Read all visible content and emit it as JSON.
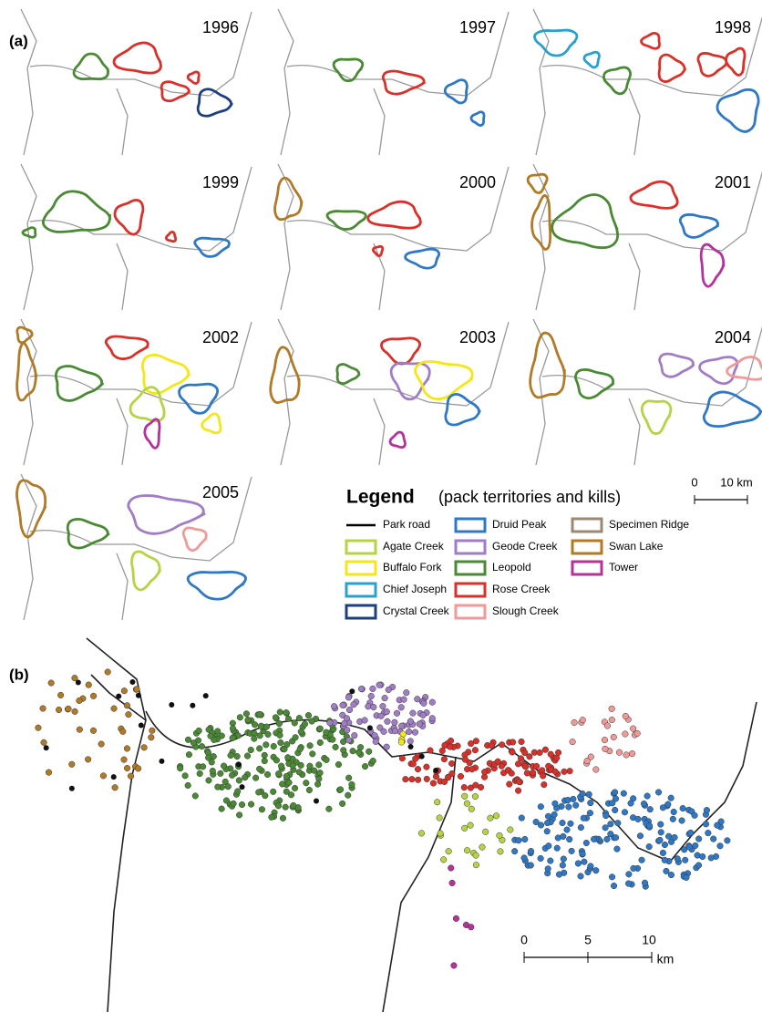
{
  "panel_a": {
    "label": "(a)",
    "years": [
      "1996",
      "1997",
      "1998",
      "1999",
      "2000",
      "2001",
      "2002",
      "2003",
      "2004",
      "2005"
    ],
    "scale_bar": {
      "zero": "0",
      "label": "10 km"
    }
  },
  "legend": {
    "title": "Legend",
    "subtitle": "(pack territories and kills)",
    "road": "Park road",
    "packs": [
      {
        "name": "Agate Creek",
        "color": "#b5d444"
      },
      {
        "name": "Buffalo Fork",
        "color": "#f4e619"
      },
      {
        "name": "Chief Joseph",
        "color": "#2aa0cf"
      },
      {
        "name": "Crystal Creek",
        "color": "#1d3f7f"
      },
      {
        "name": "Druid Peak",
        "color": "#2f78c6"
      },
      {
        "name": "Geode Creek",
        "color": "#a07dc4"
      },
      {
        "name": "Leopold",
        "color": "#4a8a35"
      },
      {
        "name": "Rose Creek",
        "color": "#d9302a"
      },
      {
        "name": "Slough Creek",
        "color": "#f09a98"
      },
      {
        "name": "Specimen Ridge",
        "color": "#9a8a74"
      },
      {
        "name": "Swan Lake",
        "color": "#b07a26"
      },
      {
        "name": "Tower",
        "color": "#b4329a"
      }
    ]
  },
  "panel_b": {
    "label": "(b)",
    "scale_bar": {
      "ticks": [
        "0",
        "5",
        "10"
      ],
      "unit": "km"
    }
  }
}
